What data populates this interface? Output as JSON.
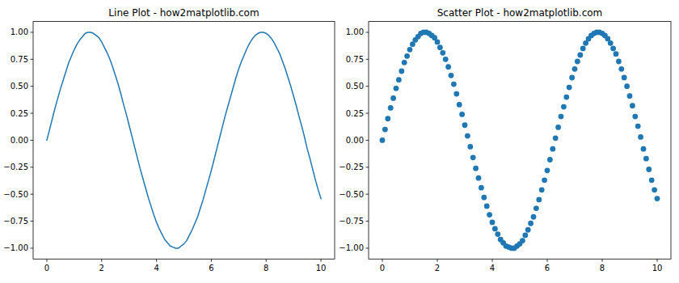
{
  "chart_data": [
    {
      "type": "line",
      "title": "Line Plot - how2matplotlib.com",
      "color": "#1f77b4",
      "grid": false,
      "x": [
        0,
        0.1,
        0.2,
        0.3,
        0.4,
        0.5,
        0.6,
        0.7,
        0.8,
        0.9,
        1.0,
        1.1,
        1.2,
        1.3,
        1.4,
        1.5,
        1.6,
        1.7,
        1.8,
        1.9,
        2.0,
        2.1,
        2.2,
        2.3,
        2.4,
        2.5,
        2.6,
        2.7,
        2.8,
        2.9,
        3.0,
        3.1,
        3.2,
        3.3,
        3.4,
        3.5,
        3.6,
        3.7,
        3.8,
        3.9,
        4.0,
        4.1,
        4.2,
        4.3,
        4.4,
        4.5,
        4.6,
        4.7,
        4.8,
        4.9,
        5.0,
        5.1,
        5.2,
        5.3,
        5.4,
        5.5,
        5.6,
        5.7,
        5.8,
        5.9,
        6.0,
        6.1,
        6.2,
        6.3,
        6.4,
        6.5,
        6.6,
        6.7,
        6.8,
        6.9,
        7.0,
        7.1,
        7.2,
        7.3,
        7.4,
        7.5,
        7.6,
        7.7,
        7.8,
        7.9,
        8.0,
        8.1,
        8.2,
        8.3,
        8.4,
        8.5,
        8.6,
        8.7,
        8.8,
        8.9,
        9.0,
        9.1,
        9.2,
        9.3,
        9.4,
        9.5,
        9.6,
        9.7,
        9.8,
        9.9,
        10.0
      ],
      "values": [
        0,
        0.1,
        0.2,
        0.3,
        0.39,
        0.48,
        0.56,
        0.64,
        0.72,
        0.78,
        0.84,
        0.89,
        0.93,
        0.96,
        0.99,
        1.0,
        1.0,
        0.99,
        0.97,
        0.95,
        0.91,
        0.86,
        0.81,
        0.75,
        0.68,
        0.6,
        0.52,
        0.43,
        0.33,
        0.24,
        0.14,
        0.04,
        -0.06,
        -0.16,
        -0.26,
        -0.35,
        -0.44,
        -0.53,
        -0.61,
        -0.69,
        -0.76,
        -0.82,
        -0.87,
        -0.92,
        -0.95,
        -0.98,
        -0.99,
        -1.0,
        -1.0,
        -0.98,
        -0.96,
        -0.93,
        -0.88,
        -0.83,
        -0.77,
        -0.71,
        -0.63,
        -0.55,
        -0.46,
        -0.37,
        -0.28,
        -0.18,
        -0.08,
        0.02,
        0.12,
        0.22,
        0.31,
        0.4,
        0.49,
        0.58,
        0.66,
        0.73,
        0.79,
        0.85,
        0.9,
        0.94,
        0.97,
        0.99,
        1.0,
        1.0,
        0.99,
        0.97,
        0.94,
        0.9,
        0.85,
        0.8,
        0.73,
        0.66,
        0.58,
        0.5,
        0.41,
        0.32,
        0.22,
        0.13,
        0.03,
        -0.08,
        -0.17,
        -0.27,
        -0.37,
        -0.46,
        -0.54
      ],
      "xlim": [
        -0.5,
        10.5
      ],
      "ylim": [
        -1.1,
        1.1
      ],
      "xticks": [
        0,
        2,
        4,
        6,
        8,
        10
      ],
      "yticks": [
        {
          "value": -1,
          "label": "−1.00"
        },
        {
          "value": -0.75,
          "label": "−0.75"
        },
        {
          "value": -0.5,
          "label": "−0.50"
        },
        {
          "value": -0.25,
          "label": "−0.25"
        },
        {
          "value": 0,
          "label": "0.00"
        },
        {
          "value": 0.25,
          "label": "0.25"
        },
        {
          "value": 0.5,
          "label": "0.50"
        },
        {
          "value": 0.75,
          "label": "0.75"
        },
        {
          "value": 1,
          "label": "1.00"
        }
      ]
    },
    {
      "type": "scatter",
      "title": "Scatter Plot - how2matplotlib.com",
      "color": "#1f77b4",
      "marker": "circle",
      "grid": false,
      "x": [
        0,
        0.1,
        0.2,
        0.3,
        0.4,
        0.5,
        0.6,
        0.7,
        0.8,
        0.9,
        1.0,
        1.1,
        1.2,
        1.3,
        1.4,
        1.5,
        1.6,
        1.7,
        1.8,
        1.9,
        2.0,
        2.1,
        2.2,
        2.3,
        2.4,
        2.5,
        2.6,
        2.7,
        2.8,
        2.9,
        3.0,
        3.1,
        3.2,
        3.3,
        3.4,
        3.5,
        3.6,
        3.7,
        3.8,
        3.9,
        4.0,
        4.1,
        4.2,
        4.3,
        4.4,
        4.5,
        4.6,
        4.7,
        4.8,
        4.9,
        5.0,
        5.1,
        5.2,
        5.3,
        5.4,
        5.5,
        5.6,
        5.7,
        5.8,
        5.9,
        6.0,
        6.1,
        6.2,
        6.3,
        6.4,
        6.5,
        6.6,
        6.7,
        6.8,
        6.9,
        7.0,
        7.1,
        7.2,
        7.3,
        7.4,
        7.5,
        7.6,
        7.7,
        7.8,
        7.9,
        8.0,
        8.1,
        8.2,
        8.3,
        8.4,
        8.5,
        8.6,
        8.7,
        8.8,
        8.9,
        9.0,
        9.1,
        9.2,
        9.3,
        9.4,
        9.5,
        9.6,
        9.7,
        9.8,
        9.9,
        10.0
      ],
      "values": [
        0,
        0.1,
        0.2,
        0.3,
        0.39,
        0.48,
        0.56,
        0.64,
        0.72,
        0.78,
        0.84,
        0.89,
        0.93,
        0.96,
        0.99,
        1.0,
        1.0,
        0.99,
        0.97,
        0.95,
        0.91,
        0.86,
        0.81,
        0.75,
        0.68,
        0.6,
        0.52,
        0.43,
        0.33,
        0.24,
        0.14,
        0.04,
        -0.06,
        -0.16,
        -0.26,
        -0.35,
        -0.44,
        -0.53,
        -0.61,
        -0.69,
        -0.76,
        -0.82,
        -0.87,
        -0.92,
        -0.95,
        -0.98,
        -0.99,
        -1.0,
        -1.0,
        -0.98,
        -0.96,
        -0.93,
        -0.88,
        -0.83,
        -0.77,
        -0.71,
        -0.63,
        -0.55,
        -0.46,
        -0.37,
        -0.28,
        -0.18,
        -0.08,
        0.02,
        0.12,
        0.22,
        0.31,
        0.4,
        0.49,
        0.58,
        0.66,
        0.73,
        0.79,
        0.85,
        0.9,
        0.94,
        0.97,
        0.99,
        1.0,
        1.0,
        0.99,
        0.97,
        0.94,
        0.9,
        0.85,
        0.8,
        0.73,
        0.66,
        0.58,
        0.5,
        0.41,
        0.32,
        0.22,
        0.13,
        0.03,
        -0.08,
        -0.17,
        -0.27,
        -0.37,
        -0.46,
        -0.54
      ],
      "xlim": [
        -0.5,
        10.5
      ],
      "ylim": [
        -1.1,
        1.1
      ],
      "xticks": [
        0,
        2,
        4,
        6,
        8,
        10
      ],
      "yticks": [
        {
          "value": -1,
          "label": "−1.00"
        },
        {
          "value": -0.75,
          "label": "−0.75"
        },
        {
          "value": -0.5,
          "label": "−0.50"
        },
        {
          "value": -0.25,
          "label": "−0.25"
        },
        {
          "value": 0,
          "label": "0.00"
        },
        {
          "value": 0.25,
          "label": "0.25"
        },
        {
          "value": 0.5,
          "label": "0.50"
        },
        {
          "value": 0.75,
          "label": "0.75"
        },
        {
          "value": 1,
          "label": "1.00"
        }
      ]
    }
  ]
}
